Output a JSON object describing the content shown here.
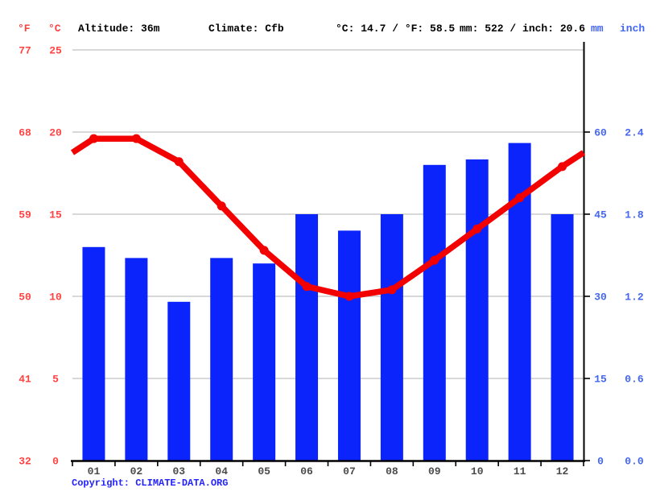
{
  "header": {
    "f_unit": "°F",
    "c_unit": "°C",
    "altitude": "Altitude: 36m",
    "climate": "Climate: Cfb",
    "temp_average": "°C: 14.7 / °F: 58.5",
    "precip_total": "mm: 522 / inch: 20.6",
    "mm_unit": "mm",
    "inch_unit": "inch"
  },
  "axes": {
    "left": {
      "fahrenheit_labels": [
        "77",
        "68",
        "59",
        "50",
        "41",
        "32"
      ],
      "celsius_labels": [
        "25",
        "20",
        "15",
        "10",
        "5",
        "0"
      ],
      "celsius_values": [
        25,
        20,
        15,
        10,
        5,
        0
      ]
    },
    "right": {
      "mm_labels": [
        "60",
        "45",
        "30",
        "15",
        "0"
      ],
      "inch_labels": [
        "2.4",
        "1.8",
        "1.2",
        "0.6",
        "0.0"
      ],
      "mm_values": [
        60,
        45,
        30,
        15,
        0
      ]
    }
  },
  "chart_data": {
    "type": "bar+line climograph",
    "categories": [
      "01",
      "02",
      "03",
      "04",
      "05",
      "06",
      "07",
      "08",
      "09",
      "10",
      "11",
      "12"
    ],
    "series": [
      {
        "name": "precipitation",
        "type": "bar",
        "unit": "mm",
        "values": [
          39,
          37,
          29,
          37,
          36,
          45,
          42,
          45,
          54,
          55,
          58,
          45
        ]
      },
      {
        "name": "temperature",
        "type": "line",
        "unit": "°C",
        "values": [
          19.6,
          19.6,
          18.2,
          15.5,
          12.8,
          10.6,
          10.0,
          10.4,
          12.2,
          14.1,
          16.0,
          17.9
        ]
      }
    ],
    "temp_axis_c": {
      "min": 0,
      "max": 25,
      "step": 5
    },
    "precip_axis_mm": {
      "min": 0,
      "max": 75,
      "step": 15
    },
    "grid": true,
    "line_wraps_to_edges": true,
    "annotations": {
      "altitude": "Altitude: 36m",
      "climate_class": "Climate: Cfb",
      "annual_mean_temp": "°C: 14.7 / °F: 58.5",
      "annual_precip": "mm: 522 / inch: 20.6"
    }
  },
  "footer": {
    "copyright": "Copyright: CLIMATE-DATA.ORG"
  },
  "colors": {
    "bar_blue": "#0b24fb",
    "line_red": "#f30000",
    "red_label": "#ff4242",
    "blue_label": "#4466f5",
    "copyright_blue": "#2222ff",
    "month_label": "#4a4a4a",
    "grid_gray": "#cccccc",
    "axis_black": "#000000",
    "header_black": "#000000"
  }
}
